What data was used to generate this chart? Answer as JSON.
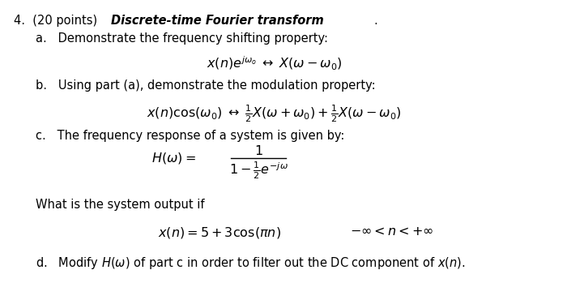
{
  "bg_color": "#ffffff",
  "text_color": "#000000",
  "title_line": "4.  (20 points) Discrete-time Fourier transform.",
  "part_a_label": "a.   Demonstrate the frequency shifting property:",
  "part_a_formula": "$x(n)e^{j\\omega_o} \\;\\leftrightarrow\\; X(\\omega - \\omega_0)$",
  "part_b_label": "b.   Using part (a), demonstrate the modulation property:",
  "part_b_formula": "$x(n)\\cos(\\omega_0) \\;\\leftrightarrow\\; \\frac{1}{2}X(\\omega + \\omega_0) + \\frac{1}{2}X(\\omega - \\omega_0)$",
  "part_c_label": "c.   The frequency response of a system is given by:",
  "part_c_formula_num": "$1$",
  "part_c_formula_eq": "$H(\\omega) = $",
  "part_c_formula_den": "$1 - \\frac{1}{2}e^{-j\\omega}$",
  "part_c_note": "What is the system output if",
  "part_c_xn": "$x(n) = 5 + 3\\cos(\\pi n)$",
  "part_c_range": "$-\\infty < n < +\\infty$",
  "part_d_label": "d.   Modify $H(\\omega)$ of part c in order to filter out the DC component of $x(n)$."
}
